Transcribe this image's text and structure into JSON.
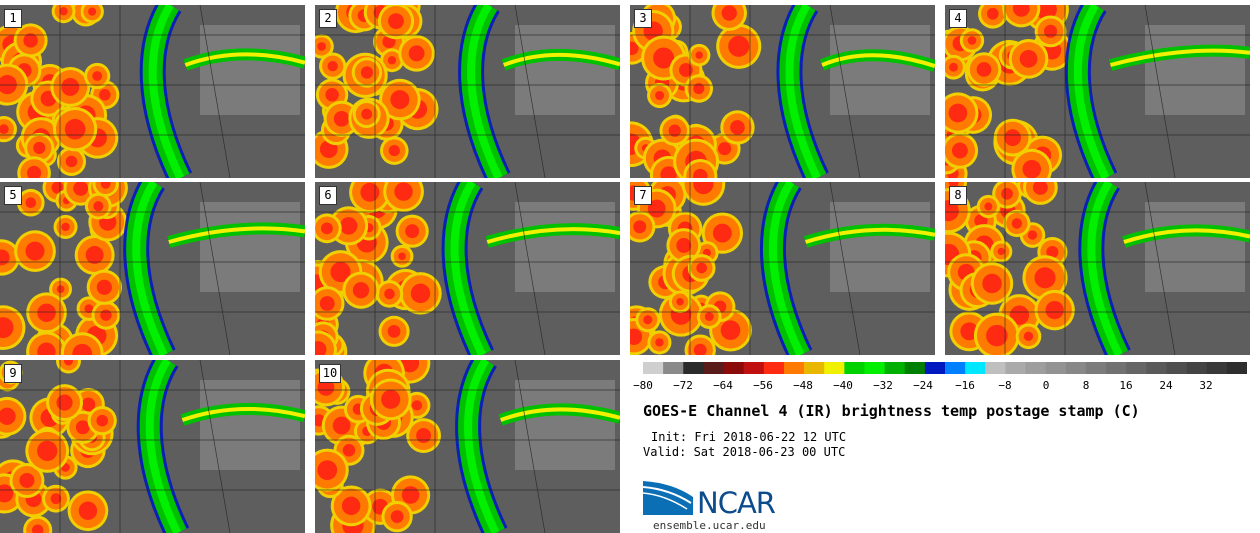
{
  "panels": [
    {
      "label": "1"
    },
    {
      "label": "2"
    },
    {
      "label": "3"
    },
    {
      "label": "4"
    },
    {
      "label": "5"
    },
    {
      "label": "6"
    },
    {
      "label": "7"
    },
    {
      "label": "8"
    },
    {
      "label": "9"
    },
    {
      "label": "10"
    }
  ],
  "colorbar": {
    "colors": [
      "#cfcfcf",
      "#8a8a8a",
      "#2b2b2b",
      "#5a1b1b",
      "#8b0a0a",
      "#c01010",
      "#ff2a12",
      "#ff7a00",
      "#e8b800",
      "#f0f000",
      "#00d200",
      "#00f000",
      "#00b000",
      "#008000",
      "#0018c0",
      "#0080ff",
      "#00e8ff",
      "#bfbfbf",
      "#aaaaaa",
      "#9e9e9e",
      "#939393",
      "#888888",
      "#7c7c7c",
      "#717171",
      "#666666",
      "#5a5a5a",
      "#4f4f4f",
      "#444444",
      "#393939",
      "#2e2e2e"
    ],
    "ticks": [
      "−80",
      "−72",
      "−64",
      "−56",
      "−48",
      "−40",
      "−32",
      "−24",
      "−16",
      "−8",
      "0",
      "8",
      "16",
      "24",
      "32"
    ]
  },
  "title": "GOES-E Channel 4 (IR) brightness temp postage stamp (C)",
  "init": "Init: Fri 2018-06-22 12 UTC",
  "valid": "Valid: Sat 2018-06-23 00 UTC",
  "logo": {
    "text": "NCAR",
    "color": "#0d4c8c"
  },
  "site": "ensemble.ucar.edu"
}
